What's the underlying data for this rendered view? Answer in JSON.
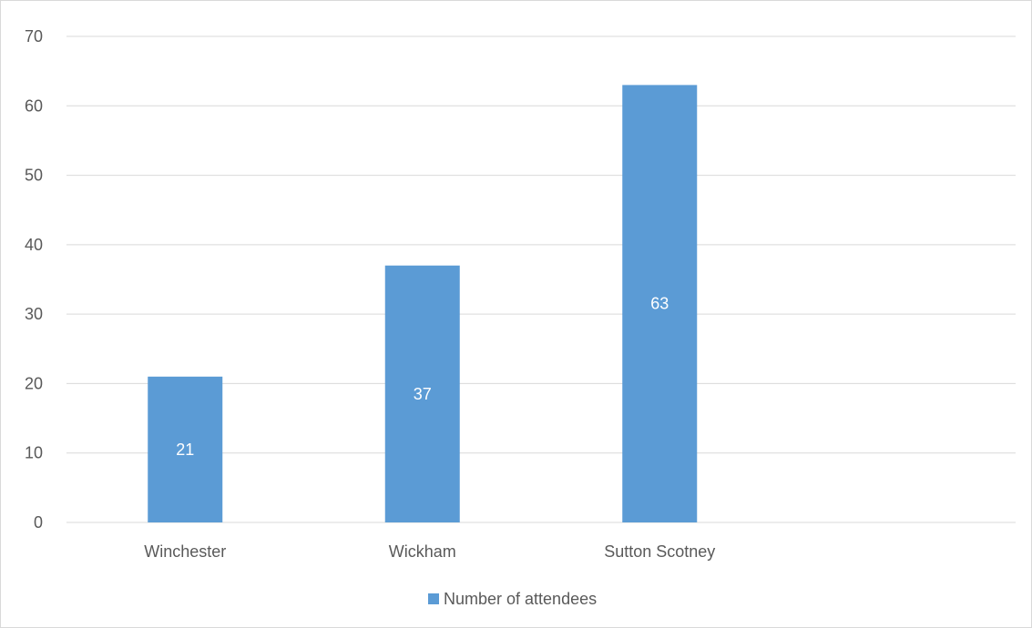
{
  "chart_data": {
    "type": "bar",
    "categories": [
      "Winchester",
      "Wickham",
      "Sutton Scotney",
      ""
    ],
    "series": [
      {
        "name": "Number of attendees",
        "values": [
          21,
          37,
          63,
          null
        ],
        "color": "#5b9bd5"
      }
    ],
    "data_labels": [
      "21",
      "37",
      "63"
    ],
    "ylim": [
      0,
      70
    ],
    "yticks": [
      0,
      10,
      20,
      30,
      40,
      50,
      60,
      70
    ],
    "grid": true,
    "legend": "bottom",
    "title": "",
    "xlabel": "",
    "ylabel": ""
  }
}
